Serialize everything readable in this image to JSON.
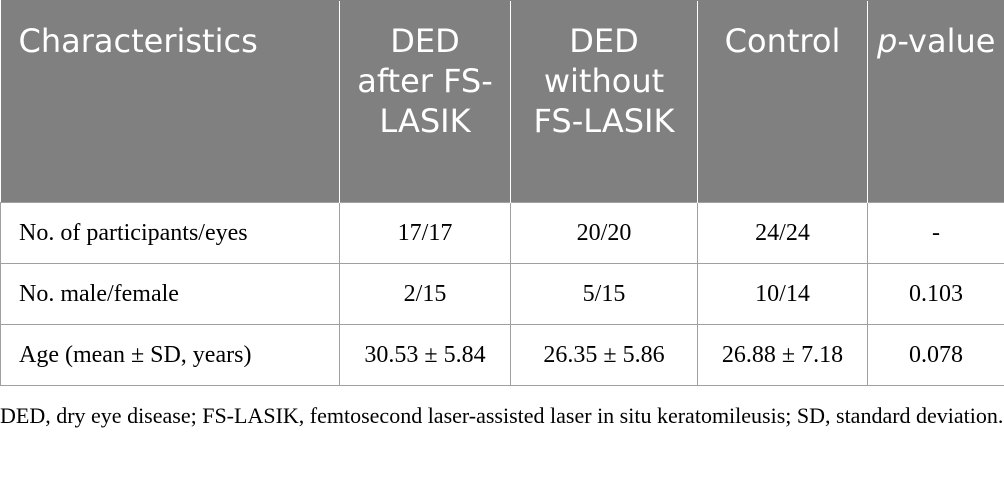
{
  "table": {
    "headers": {
      "characteristics": "Characteristics",
      "ded_after": "DED after FS-LASIK",
      "ded_without": "DED without FS-LASIK",
      "control": "Control",
      "pvalue_italic": "p",
      "pvalue_rest": "-value"
    },
    "rows": [
      {
        "label": "No. of participants/eyes",
        "ded_after": "17/17",
        "ded_without": "20/20",
        "control": "24/24",
        "pvalue": "-"
      },
      {
        "label": "No. male/female",
        "ded_after": "2/15",
        "ded_without": "5/15",
        "control": "10/14",
        "pvalue": "0.103"
      },
      {
        "label": "Age (mean ± SD, years)",
        "ded_after": "30.53 ± 5.84",
        "ded_without": "26.35 ± 5.86",
        "control": "26.88 ± 7.18",
        "pvalue": "0.078"
      }
    ]
  },
  "footnote": "DED, dry eye disease; FS-LASIK, femtosecond laser-assisted laser in situ keratomileusis; SD, standard deviation.",
  "colors": {
    "header_bg": "#808080",
    "header_text": "#ffffff",
    "border": "#a0a0a0"
  }
}
